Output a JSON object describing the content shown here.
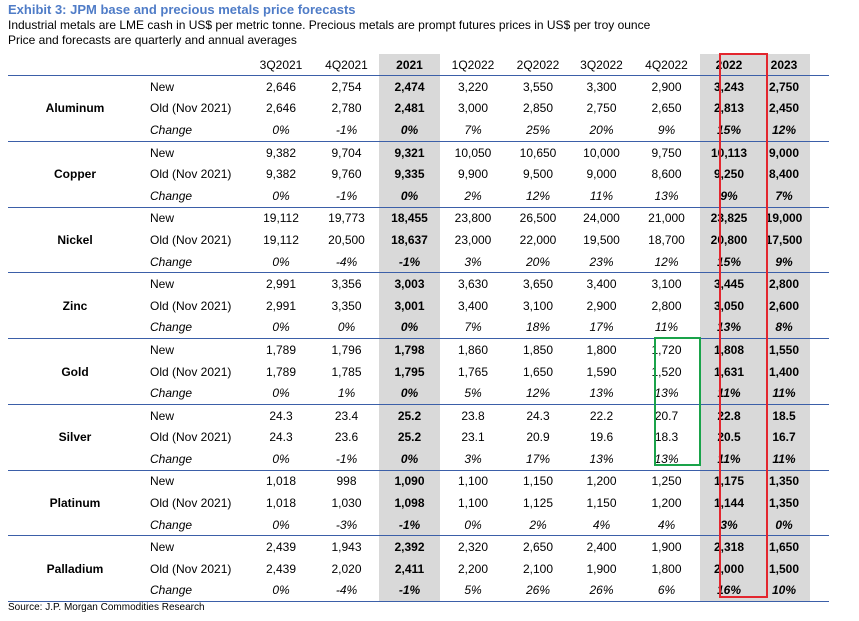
{
  "title": "Exhibit 3: JPM base and precious metals price forecasts",
  "subtitle1": "Industrial metals are LME cash in US$ per metric tonne. Precious metals are prompt futures prices in US$ per troy ounce",
  "subtitle2": "Price and forecasts are quarterly and annual averages",
  "source": "Source: J.P. Morgan Commodities Research",
  "columns": [
    "3Q2021",
    "4Q2021",
    "2021",
    "1Q2022",
    "2Q2022",
    "3Q2022",
    "4Q2022",
    "2022",
    "2023"
  ],
  "row_labels": [
    "New",
    "Old (Nov 2021)",
    "Change"
  ],
  "metals": [
    {
      "name": "Aluminum",
      "rows": [
        [
          "2,646",
          "2,754",
          "2,474",
          "3,220",
          "3,550",
          "3,300",
          "2,900",
          "3,243",
          "2,750"
        ],
        [
          "2,646",
          "2,780",
          "2,481",
          "3,000",
          "2,850",
          "2,750",
          "2,650",
          "2,813",
          "2,450"
        ],
        [
          "0%",
          "-1%",
          "0%",
          "7%",
          "25%",
          "20%",
          "9%",
          "15%",
          "12%"
        ]
      ]
    },
    {
      "name": "Copper",
      "rows": [
        [
          "9,382",
          "9,704",
          "9,321",
          "10,050",
          "10,650",
          "10,000",
          "9,750",
          "10,113",
          "9,000"
        ],
        [
          "9,382",
          "9,760",
          "9,335",
          "9,900",
          "9,500",
          "9,000",
          "8,600",
          "9,250",
          "8,400"
        ],
        [
          "0%",
          "-1%",
          "0%",
          "2%",
          "12%",
          "11%",
          "13%",
          "9%",
          "7%"
        ]
      ]
    },
    {
      "name": "Nickel",
      "rows": [
        [
          "19,112",
          "19,773",
          "18,455",
          "23,800",
          "26,500",
          "24,000",
          "21,000",
          "23,825",
          "19,000"
        ],
        [
          "19,112",
          "20,500",
          "18,637",
          "23,000",
          "22,000",
          "19,500",
          "18,700",
          "20,800",
          "17,500"
        ],
        [
          "0%",
          "-4%",
          "-1%",
          "3%",
          "20%",
          "23%",
          "12%",
          "15%",
          "9%"
        ]
      ]
    },
    {
      "name": "Zinc",
      "rows": [
        [
          "2,991",
          "3,356",
          "3,003",
          "3,630",
          "3,650",
          "3,400",
          "3,100",
          "3,445",
          "2,800"
        ],
        [
          "2,991",
          "3,350",
          "3,001",
          "3,400",
          "3,100",
          "2,900",
          "2,800",
          "3,050",
          "2,600"
        ],
        [
          "0%",
          "0%",
          "0%",
          "7%",
          "18%",
          "17%",
          "11%",
          "13%",
          "8%"
        ]
      ]
    },
    {
      "name": "Gold",
      "rows": [
        [
          "1,789",
          "1,796",
          "1,798",
          "1,860",
          "1,850",
          "1,800",
          "1,720",
          "1,808",
          "1,550"
        ],
        [
          "1,789",
          "1,785",
          "1,795",
          "1,765",
          "1,650",
          "1,590",
          "1,520",
          "1,631",
          "1,400"
        ],
        [
          "0%",
          "1%",
          "0%",
          "5%",
          "12%",
          "13%",
          "13%",
          "11%",
          "11%"
        ]
      ]
    },
    {
      "name": "Silver",
      "rows": [
        [
          "24.3",
          "23.4",
          "25.2",
          "23.8",
          "24.3",
          "22.2",
          "20.7",
          "22.8",
          "18.5"
        ],
        [
          "24.3",
          "23.6",
          "25.2",
          "23.1",
          "20.9",
          "19.6",
          "18.3",
          "20.5",
          "16.7"
        ],
        [
          "0%",
          "-1%",
          "0%",
          "3%",
          "17%",
          "13%",
          "13%",
          "11%",
          "11%"
        ]
      ]
    },
    {
      "name": "Platinum",
      "rows": [
        [
          "1,018",
          "998",
          "1,090",
          "1,100",
          "1,150",
          "1,200",
          "1,250",
          "1,175",
          "1,350"
        ],
        [
          "1,018",
          "1,030",
          "1,098",
          "1,100",
          "1,125",
          "1,150",
          "1,200",
          "1,144",
          "1,350"
        ],
        [
          "0%",
          "-3%",
          "-1%",
          "0%",
          "2%",
          "4%",
          "4%",
          "3%",
          "0%"
        ]
      ]
    },
    {
      "name": "Palladium",
      "rows": [
        [
          "2,439",
          "1,943",
          "2,392",
          "2,320",
          "2,650",
          "2,400",
          "1,900",
          "2,318",
          "1,650"
        ],
        [
          "2,439",
          "2,020",
          "2,411",
          "2,200",
          "2,100",
          "1,900",
          "1,800",
          "2,000",
          "1,500"
        ],
        [
          "0%",
          "-4%",
          "-1%",
          "5%",
          "26%",
          "26%",
          "6%",
          "16%",
          "10%"
        ]
      ]
    }
  ],
  "highlight_colors": {
    "annual_shade": "#d9d9d9",
    "box_2022": "#e3262e",
    "box_4q2022_precious": "#1aa34a",
    "rule": "#3b5fa8",
    "title": "#4f7cc7"
  }
}
